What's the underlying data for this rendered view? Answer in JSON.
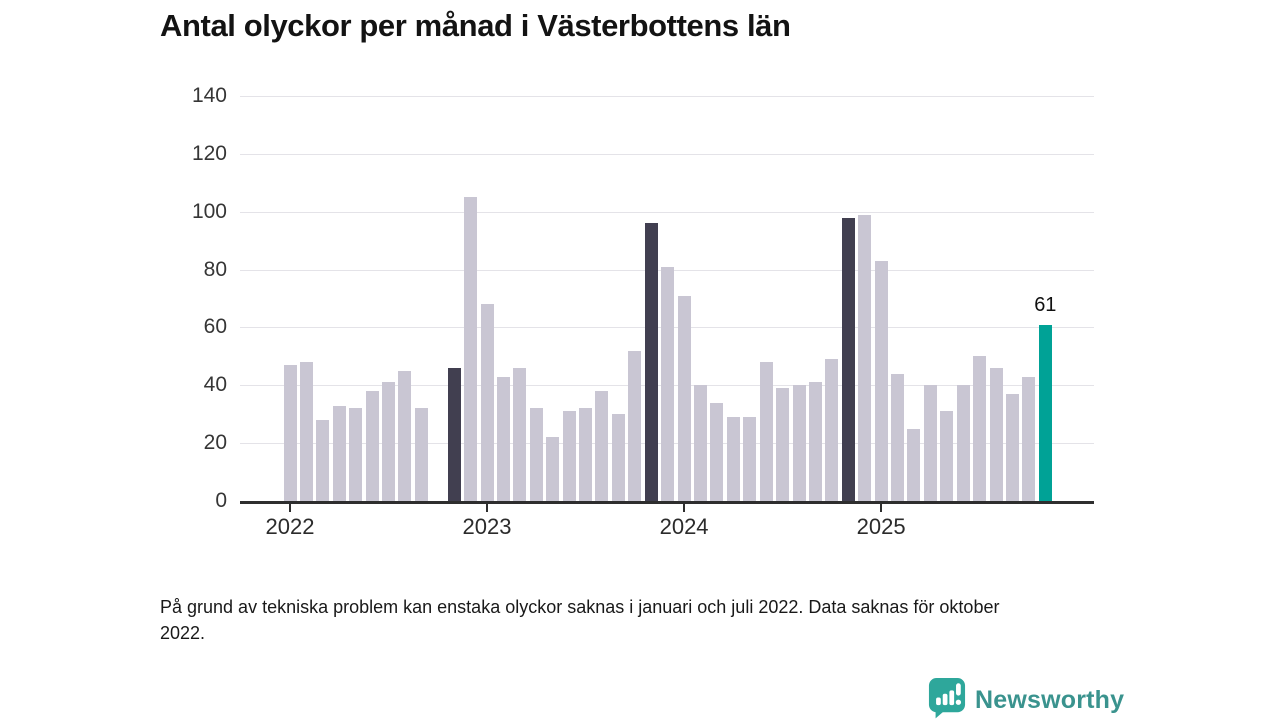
{
  "title": "Antal olyckor per månad i Västerbottens län",
  "footnote": "På grund av tekniska problem kan enstaka olyckor saknas i januari och juli 2022. Data saknas för oktober 2022.",
  "logo": {
    "text": "Newsworthy",
    "icon": "newsworthy-speech-bubble-bar-chart-icon",
    "icon_color": "#2ea79b",
    "text_color": "#3a938e"
  },
  "chart_data": {
    "type": "bar",
    "title": "Antal olyckor per månad i Västerbottens län",
    "xlabel": "",
    "ylabel": "",
    "ylim": [
      0,
      140
    ],
    "yticks": [
      0,
      20,
      40,
      60,
      80,
      100,
      120,
      140
    ],
    "grid": "horizontal-light",
    "legend_position": "none",
    "series_name": "Antal olyckor per månad",
    "colors": {
      "normal": "#c9c6d3",
      "dark": "#413f50",
      "current": "#00a296"
    },
    "highlight_note": "dark bars = november each year, teal bar = latest month (labeled)",
    "year_ticks": [
      {
        "label": "2022",
        "month_index": 0
      },
      {
        "label": "2023",
        "month_index": 12
      },
      {
        "label": "2024",
        "month_index": 24
      },
      {
        "label": "2025",
        "month_index": 36
      }
    ],
    "points": [
      {
        "x": "2022-01",
        "value": 47,
        "type": "normal"
      },
      {
        "x": "2022-02",
        "value": 48,
        "type": "normal"
      },
      {
        "x": "2022-03",
        "value": 28,
        "type": "normal"
      },
      {
        "x": "2022-04",
        "value": 33,
        "type": "normal"
      },
      {
        "x": "2022-05",
        "value": 32,
        "type": "normal"
      },
      {
        "x": "2022-06",
        "value": 38,
        "type": "normal"
      },
      {
        "x": "2022-07",
        "value": 41,
        "type": "normal"
      },
      {
        "x": "2022-08",
        "value": 45,
        "type": "normal"
      },
      {
        "x": "2022-09",
        "value": 32,
        "type": "normal"
      },
      {
        "x": "2022-10",
        "value": null,
        "type": "missing"
      },
      {
        "x": "2022-11",
        "value": 46,
        "type": "dark"
      },
      {
        "x": "2022-12",
        "value": 105,
        "type": "normal"
      },
      {
        "x": "2023-01",
        "value": 68,
        "type": "normal"
      },
      {
        "x": "2023-02",
        "value": 43,
        "type": "normal"
      },
      {
        "x": "2023-03",
        "value": 46,
        "type": "normal"
      },
      {
        "x": "2023-04",
        "value": 32,
        "type": "normal"
      },
      {
        "x": "2023-05",
        "value": 22,
        "type": "normal"
      },
      {
        "x": "2023-06",
        "value": 31,
        "type": "normal"
      },
      {
        "x": "2023-07",
        "value": 32,
        "type": "normal"
      },
      {
        "x": "2023-08",
        "value": 38,
        "type": "normal"
      },
      {
        "x": "2023-09",
        "value": 30,
        "type": "normal"
      },
      {
        "x": "2023-10",
        "value": 52,
        "type": "normal"
      },
      {
        "x": "2023-11",
        "value": 96,
        "type": "dark"
      },
      {
        "x": "2023-12",
        "value": 81,
        "type": "normal"
      },
      {
        "x": "2024-01",
        "value": 71,
        "type": "normal"
      },
      {
        "x": "2024-02",
        "value": 40,
        "type": "normal"
      },
      {
        "x": "2024-03",
        "value": 34,
        "type": "normal"
      },
      {
        "x": "2024-04",
        "value": 29,
        "type": "normal"
      },
      {
        "x": "2024-05",
        "value": 29,
        "type": "normal"
      },
      {
        "x": "2024-06",
        "value": 48,
        "type": "normal"
      },
      {
        "x": "2024-07",
        "value": 39,
        "type": "normal"
      },
      {
        "x": "2024-08",
        "value": 40,
        "type": "normal"
      },
      {
        "x": "2024-09",
        "value": 41,
        "type": "normal"
      },
      {
        "x": "2024-10",
        "value": 49,
        "type": "normal"
      },
      {
        "x": "2024-11",
        "value": 98,
        "type": "dark"
      },
      {
        "x": "2024-12",
        "value": 99,
        "type": "normal"
      },
      {
        "x": "2025-01",
        "value": 83,
        "type": "normal"
      },
      {
        "x": "2025-02",
        "value": 44,
        "type": "normal"
      },
      {
        "x": "2025-03",
        "value": 25,
        "type": "normal"
      },
      {
        "x": "2025-04",
        "value": 40,
        "type": "normal"
      },
      {
        "x": "2025-05",
        "value": 31,
        "type": "normal"
      },
      {
        "x": "2025-06",
        "value": 40,
        "type": "normal"
      },
      {
        "x": "2025-07",
        "value": 50,
        "type": "normal"
      },
      {
        "x": "2025-08",
        "value": 46,
        "type": "normal"
      },
      {
        "x": "2025-09",
        "value": 37,
        "type": "normal"
      },
      {
        "x": "2025-10",
        "value": 43,
        "type": "normal"
      },
      {
        "x": "2025-11",
        "value": 61,
        "type": "current",
        "label": "61"
      }
    ]
  }
}
